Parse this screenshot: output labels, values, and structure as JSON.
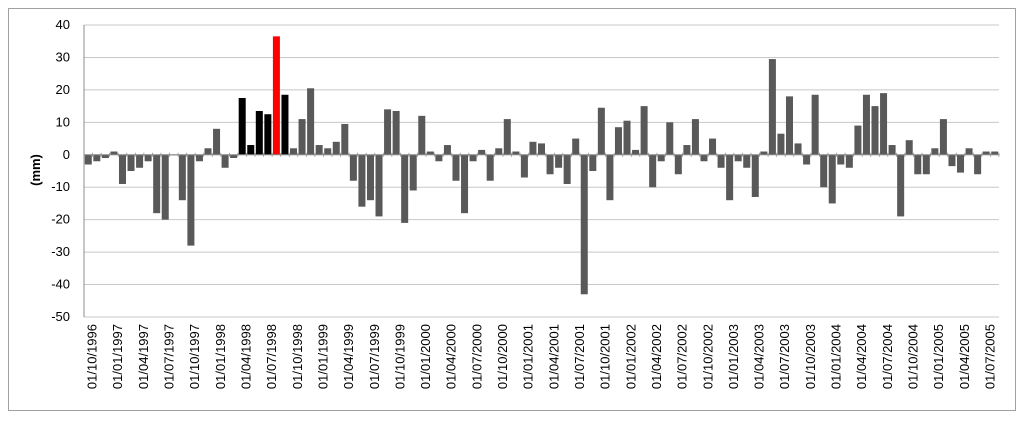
{
  "chart_data": {
    "type": "bar",
    "title": "",
    "xlabel": "",
    "ylabel": "(mm)",
    "ylim": [
      -50,
      40
    ],
    "yticks": [
      40,
      30,
      20,
      10,
      0,
      -10,
      -20,
      -30,
      -40,
      -50
    ],
    "grid": true,
    "legend": "none",
    "start_month": "1996-09",
    "xtick_labels": [
      "01/10/1996",
      "01/01/1997",
      "01/04/1997",
      "01/07/1997",
      "01/10/1997",
      "01/01/1998",
      "01/04/1998",
      "01/07/1998",
      "01/10/1998",
      "01/01/1999",
      "01/04/1999",
      "01/07/1999",
      "01/10/1999",
      "01/01/2000",
      "01/04/2000",
      "01/07/2000",
      "01/10/2000",
      "01/01/2001",
      "01/04/2001",
      "01/07/2001",
      "01/10/2001",
      "01/01/2002",
      "01/04/2002",
      "01/07/2002",
      "01/10/2002",
      "01/01/2003",
      "01/04/2003",
      "01/07/2003",
      "01/10/2003",
      "01/01/2004",
      "01/04/2004",
      "01/07/2004",
      "01/10/2004",
      "01/01/2005",
      "01/04/2005",
      "01/07/2005"
    ],
    "values": [
      -3,
      -2,
      -1,
      1,
      -9,
      -5,
      -4,
      -2,
      -18,
      -20,
      0,
      -14,
      -28,
      -2,
      2,
      8,
      -4,
      -1,
      17.5,
      3,
      13.5,
      12.5,
      36.5,
      18.5,
      2,
      11,
      20.5,
      3,
      2,
      4,
      9.5,
      -8,
      -16,
      -14,
      -19,
      14,
      13.5,
      -21,
      -11,
      12,
      1,
      -2,
      3,
      -8,
      -18,
      -2,
      1.5,
      -8,
      2,
      11,
      1,
      -7,
      4,
      3.5,
      -6,
      -4,
      -9,
      5,
      -43,
      -5,
      14.5,
      -14,
      8.5,
      10.5,
      1.5,
      15,
      -10,
      -2,
      10,
      -6,
      3,
      11,
      -2,
      5,
      -4,
      -14,
      -2,
      -4,
      -13,
      1,
      29.5,
      6.5,
      18,
      3.5,
      -3,
      18.5,
      -10,
      -15,
      -3,
      -4,
      9,
      18.5,
      15,
      19,
      3,
      -19,
      4.5,
      -6,
      -6,
      2,
      11,
      -3.5,
      -5.5,
      2,
      -6,
      1,
      1
    ],
    "colors": {
      "default": "#595959",
      "highlight_black": "#000000",
      "highlight_red": "#ff0000",
      "grid": "#c8c8c8"
    },
    "black_indices": [
      18,
      19,
      20,
      21,
      23
    ],
    "red_indices": [
      22
    ]
  }
}
